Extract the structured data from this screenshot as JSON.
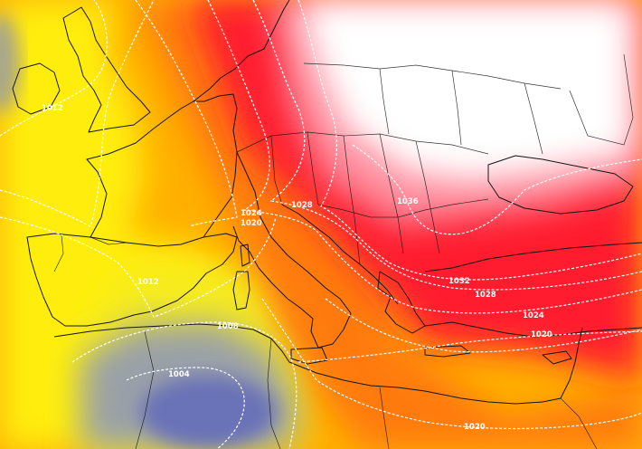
{
  "map": {
    "colors": {
      "high_core": "#ffffff",
      "high": "#ff1a2e",
      "mid": "#ff7a10",
      "warm": "#ffb000",
      "yellow": "#ffee10",
      "low": "#7d87b0",
      "low_core": "#6b72b8",
      "isobar": "#ffffff",
      "coast": "#141414"
    },
    "isobar_labels": [
      "1012",
      "1024",
      "1020",
      "1028",
      "1036",
      "1012",
      "1032",
      "1028",
      "1024",
      "1020",
      "1008",
      "1004",
      "1020"
    ]
  }
}
